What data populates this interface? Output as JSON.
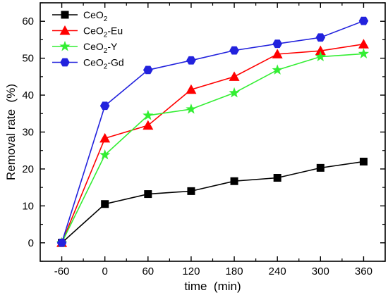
{
  "chart_data": {
    "type": "line",
    "title": "",
    "xlabel": "time  (min)",
    "ylabel": "Removal rate  (%)",
    "x": [
      -60,
      0,
      60,
      120,
      180,
      240,
      300,
      360
    ],
    "x_tick_labels": [
      "-60",
      "0",
      "60",
      "120",
      "180",
      "240",
      "300",
      "360"
    ],
    "xlim": [
      -90,
      390
    ],
    "ylim": [
      -5,
      65
    ],
    "y_ticks": [
      0,
      10,
      20,
      30,
      40,
      50,
      60
    ],
    "y_tick_labels": [
      "0",
      "10",
      "20",
      "30",
      "40",
      "50",
      "60"
    ],
    "grid": false,
    "legend_position": "top-left",
    "series": [
      {
        "name": "CeO2",
        "legend_parts": [
          {
            "t": "CeO",
            "sub": false
          },
          {
            "t": "2",
            "sub": true
          }
        ],
        "color": "#000000",
        "marker": "square",
        "values": [
          0,
          10.5,
          13.2,
          14.0,
          16.7,
          17.6,
          20.3,
          22.0
        ]
      },
      {
        "name": "CeO2-Eu",
        "legend_parts": [
          {
            "t": "CeO",
            "sub": false
          },
          {
            "t": "2",
            "sub": true
          },
          {
            "t": "-Eu",
            "sub": false
          }
        ],
        "color": "#ff0000",
        "marker": "triangle",
        "values": [
          0,
          28.3,
          31.8,
          41.5,
          45.0,
          51.1,
          52.0,
          53.8
        ]
      },
      {
        "name": "CeO2-Y",
        "legend_parts": [
          {
            "t": "CeO",
            "sub": false
          },
          {
            "t": "2",
            "sub": true
          },
          {
            "t": "-Y",
            "sub": false
          }
        ],
        "color": "#33ee33",
        "marker": "star",
        "values": [
          0,
          23.8,
          34.5,
          36.2,
          40.6,
          46.8,
          50.4,
          51.2
        ]
      },
      {
        "name": "CeO2-Gd",
        "legend_parts": [
          {
            "t": "CeO",
            "sub": false
          },
          {
            "t": "2",
            "sub": true
          },
          {
            "t": "-Gd",
            "sub": false
          }
        ],
        "color": "#2222dd",
        "marker": "hexagon",
        "values": [
          0,
          37.1,
          46.8,
          49.4,
          52.1,
          53.9,
          55.6,
          60.1
        ]
      }
    ]
  }
}
